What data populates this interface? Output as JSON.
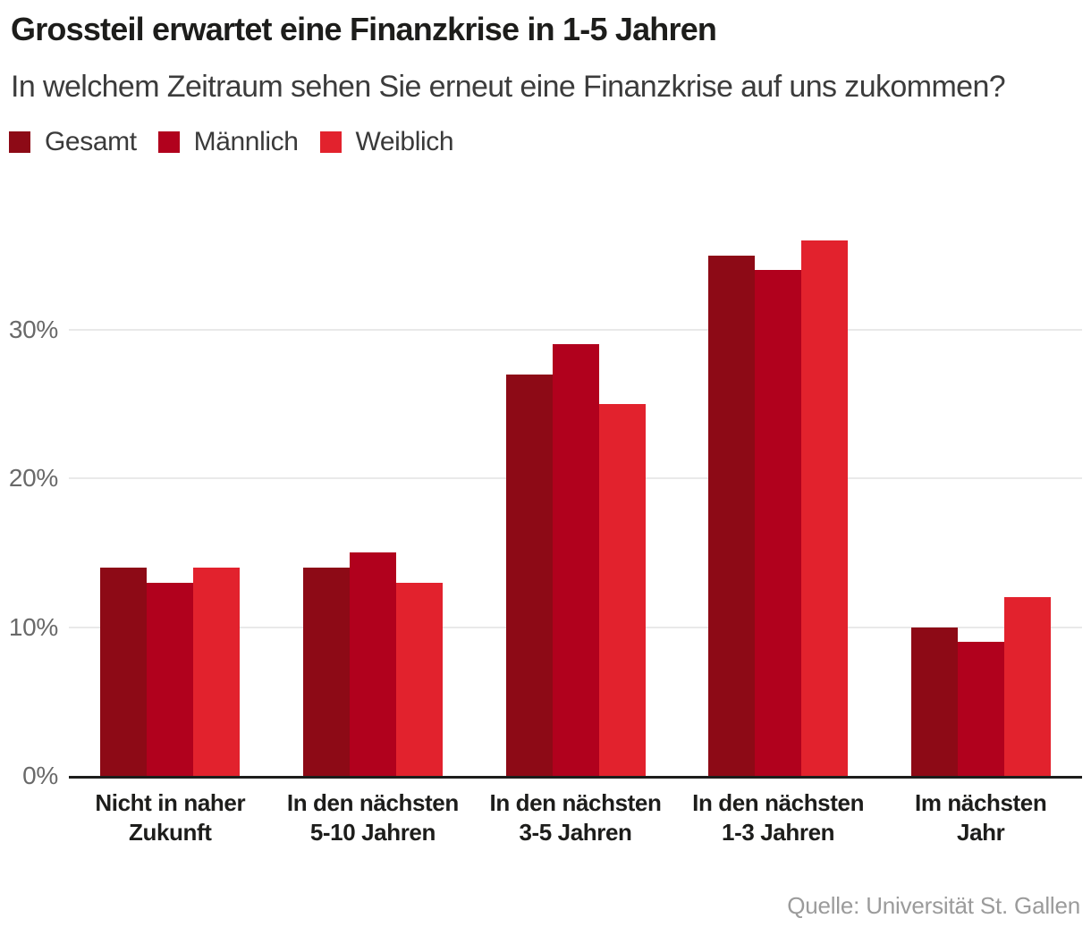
{
  "header": {
    "title": "Grossteil erwartet eine Finanzkrise in 1-5 Jahren",
    "subtitle": "In welchem Zeitraum sehen Sie erneut eine Finanzkrise auf uns zukommen?"
  },
  "footer": {
    "source": "Quelle: Universität St. Gallen"
  },
  "chart_data": {
    "type": "bar",
    "title": "Grossteil erwartet eine Finanzkrise in 1-5 Jahren",
    "subtitle": "In welchem Zeitraum sehen Sie erneut eine Finanzkrise auf uns zukommen?",
    "categories": [
      "Nicht in naher\nZukunft",
      "In den nächsten\n5-10 Jahren",
      "In den nächsten\n3-5 Jahren",
      "In den nächsten\n1-3 Jahren",
      "Im nächsten\nJahr"
    ],
    "series": [
      {
        "name": "Gesamt",
        "color": "#8d0a16",
        "values": [
          14,
          14,
          27,
          35,
          10
        ]
      },
      {
        "name": "Männlich",
        "color": "#b1011d",
        "values": [
          13,
          15,
          29,
          34,
          9
        ]
      },
      {
        "name": "Weiblich",
        "color": "#e2222d",
        "values": [
          14,
          13,
          25,
          36,
          12
        ]
      }
    ],
    "unit": "%",
    "ylim": [
      0,
      38
    ],
    "yticks": [
      {
        "value": 0,
        "label": "0%"
      },
      {
        "value": 10,
        "label": "10%"
      },
      {
        "value": 20,
        "label": "20%"
      },
      {
        "value": 30,
        "label": "30%"
      }
    ],
    "grid": "horizontal",
    "legend_position": "top-left",
    "source": "Quelle: Universität St. Gallen"
  },
  "colors": {
    "background": "#ffffff",
    "title_text": "#1d1d1b",
    "subtitle_text": "#3c3c3c",
    "axis_label": "#696969",
    "gridline": "#e9e9e9",
    "axis_line": "#1d1d1b",
    "source_text": "#9b9b9b"
  }
}
